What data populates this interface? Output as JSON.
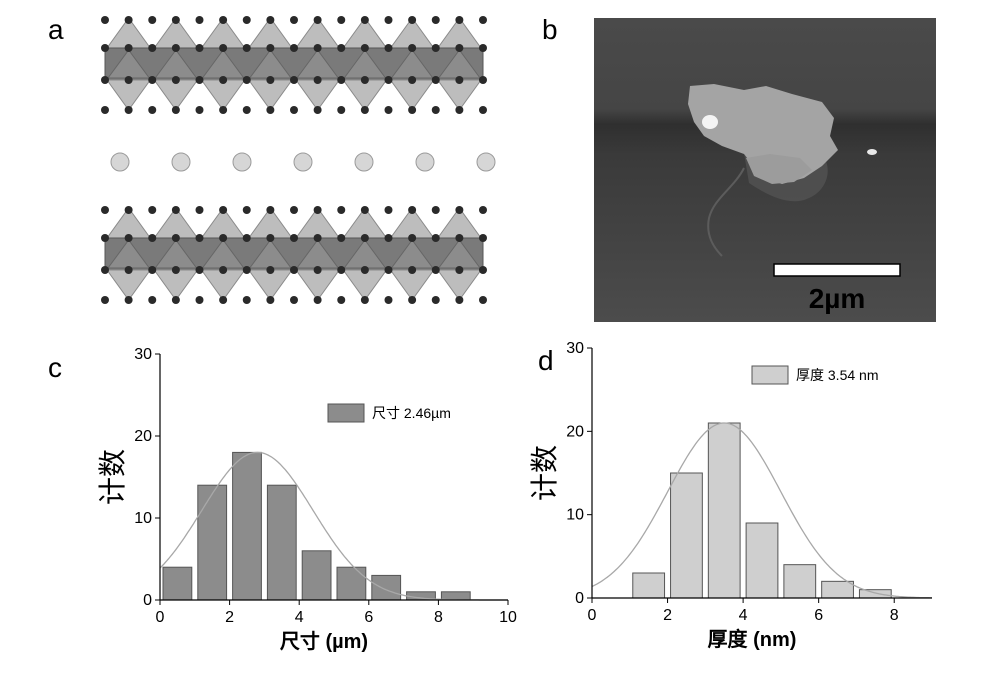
{
  "panels": {
    "a": {
      "label": "a"
    },
    "b": {
      "label": "b",
      "scale_bar": "2µm"
    },
    "c": {
      "label": "c"
    },
    "d": {
      "label": "d"
    }
  },
  "colors": {
    "c_bar": "#8c8c8c",
    "d_bar": "#cfcfcf",
    "fit_curve": "#a8a8a8",
    "afm_background": "#4d4d4d",
    "flake": "#a9a9a9"
  },
  "chart_data": [
    {
      "type": "bar",
      "panel": "c",
      "xlabel": "尺寸 (µm)",
      "ylabel": "计数",
      "xlim": [
        0,
        10
      ],
      "ylim": [
        0,
        30
      ],
      "xticks": [
        0,
        2,
        4,
        6,
        8,
        10
      ],
      "yticks": [
        0,
        10,
        20,
        30
      ],
      "legend": {
        "name": "尺寸",
        "value_text": "2.46µm",
        "position": "top-right"
      },
      "bins": [
        {
          "x0": 0,
          "x1": 1,
          "count": 4
        },
        {
          "x0": 1,
          "x1": 2,
          "count": 14
        },
        {
          "x0": 2,
          "x1": 3,
          "count": 18
        },
        {
          "x0": 3,
          "x1": 4,
          "count": 14
        },
        {
          "x0": 4,
          "x1": 5,
          "count": 6
        },
        {
          "x0": 5,
          "x1": 6,
          "count": 4
        },
        {
          "x0": 6,
          "x1": 7,
          "count": 3
        },
        {
          "x0": 7,
          "x1": 8,
          "count": 1
        },
        {
          "x0": 8,
          "x1": 9,
          "count": 1
        }
      ],
      "fit": {
        "type": "gaussian",
        "peak_x": 2.8,
        "peak_y": 18,
        "sigma": 1.6
      }
    },
    {
      "type": "bar",
      "panel": "d",
      "xlabel": "厚度 (nm)",
      "ylabel": "计数",
      "xlim": [
        0,
        9
      ],
      "ylim": [
        0,
        30
      ],
      "xticks": [
        0,
        2,
        4,
        6,
        8
      ],
      "yticks": [
        0,
        10,
        20,
        30
      ],
      "legend": {
        "name": "厚度",
        "value_text": "3.54 nm",
        "position": "top-right"
      },
      "bins": [
        {
          "x0": 1,
          "x1": 2,
          "count": 3
        },
        {
          "x0": 2,
          "x1": 3,
          "count": 15
        },
        {
          "x0": 3,
          "x1": 4,
          "count": 21
        },
        {
          "x0": 4,
          "x1": 5,
          "count": 9
        },
        {
          "x0": 5,
          "x1": 6,
          "count": 4
        },
        {
          "x0": 6,
          "x1": 7,
          "count": 2
        },
        {
          "x0": 7,
          "x1": 8,
          "count": 1
        }
      ],
      "fit": {
        "type": "gaussian",
        "peak_x": 3.5,
        "peak_y": 21,
        "sigma": 1.5
      }
    }
  ]
}
